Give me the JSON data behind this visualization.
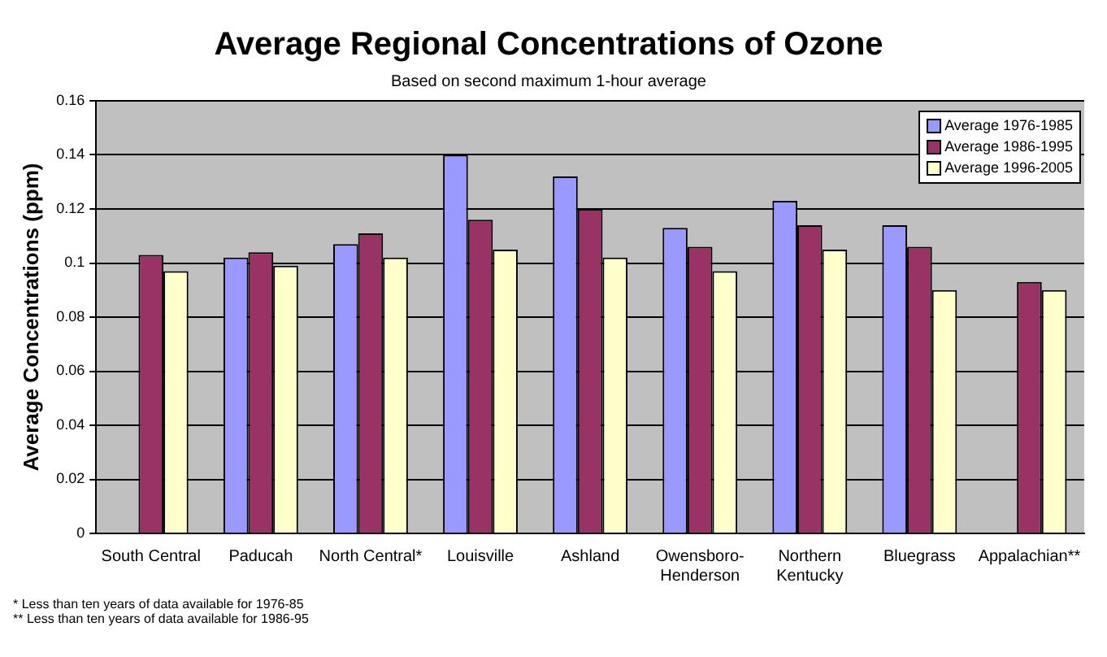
{
  "chart_data": {
    "type": "bar",
    "title": "Average Regional Concentrations of Ozone",
    "subtitle": "Based on second maximum 1-hour average",
    "ylabel": "Average Concentrations (ppm)",
    "categories": [
      "South Central",
      "Paducah",
      "North Central*",
      "Louisville",
      "Ashland",
      "Owensboro-\nHenderson",
      "Northern\nKentucky",
      "Bluegrass",
      "Appalachian**"
    ],
    "series": [
      {
        "name": "Average 1976-1985",
        "color": "#9999ff",
        "values": [
          null,
          0.102,
          0.107,
          0.14,
          0.132,
          0.113,
          0.123,
          0.114,
          null
        ]
      },
      {
        "name": "Average 1986-1995",
        "color": "#993366",
        "values": [
          0.103,
          0.104,
          0.111,
          0.116,
          0.12,
          0.106,
          0.114,
          0.106,
          0.093
        ]
      },
      {
        "name": "Average 1996-2005",
        "color": "#ffffcc",
        "values": [
          0.097,
          0.099,
          0.102,
          0.105,
          0.102,
          0.097,
          0.105,
          0.09,
          0.09
        ]
      }
    ],
    "ylim": [
      0,
      0.16
    ],
    "yticks": [
      0,
      0.02,
      0.04,
      0.06,
      0.08,
      0.1,
      0.12,
      0.14,
      0.16
    ],
    "grid": "y",
    "legend": "top right",
    "annotations": [
      "* Less than ten years of data available for 1976-85",
      "** Less than ten years of data available for 1986-95"
    ]
  }
}
